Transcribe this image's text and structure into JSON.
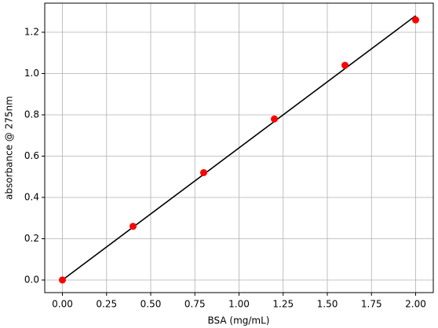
{
  "chart_data": {
    "type": "scatter",
    "xlabel": "BSA (mg/mL)",
    "ylabel": "absorbance @ 275nm",
    "series": [
      {
        "color": "#ff0000",
        "style": "points",
        "x": [
          0.0,
          0.4,
          0.8,
          1.2,
          1.6,
          2.0
        ],
        "values": [
          0.0,
          0.26,
          0.52,
          0.78,
          1.04,
          1.26
        ]
      },
      {
        "color": "#000000",
        "style": "line",
        "x": [
          0.0,
          2.0
        ],
        "values": [
          0.0,
          1.28
        ]
      }
    ],
    "xlim": [
      -0.1,
      2.1
    ],
    "ylim": [
      -0.061,
      1.341
    ],
    "xticks": [
      {
        "value": 0,
        "label": "0.00"
      },
      {
        "value": 0.25,
        "label": "0.25"
      },
      {
        "value": 0.5,
        "label": "0.50"
      },
      {
        "value": 0.75,
        "label": "0.75"
      },
      {
        "value": 1,
        "label": "1.00"
      },
      {
        "value": 1.25,
        "label": "1.25"
      },
      {
        "value": 1.5,
        "label": "1.50"
      },
      {
        "value": 1.75,
        "label": "1.75"
      },
      {
        "value": 2,
        "label": "2.00"
      }
    ],
    "yticks": [
      {
        "value": 0,
        "label": "0.0"
      },
      {
        "value": 0.2,
        "label": "0.2"
      },
      {
        "value": 0.4,
        "label": "0.4"
      },
      {
        "value": 0.6,
        "label": "0.6"
      },
      {
        "value": 0.8,
        "label": "0.8"
      },
      {
        "value": 1,
        "label": "1.0"
      },
      {
        "value": 1.2,
        "label": "1.2"
      }
    ],
    "grid": true
  }
}
